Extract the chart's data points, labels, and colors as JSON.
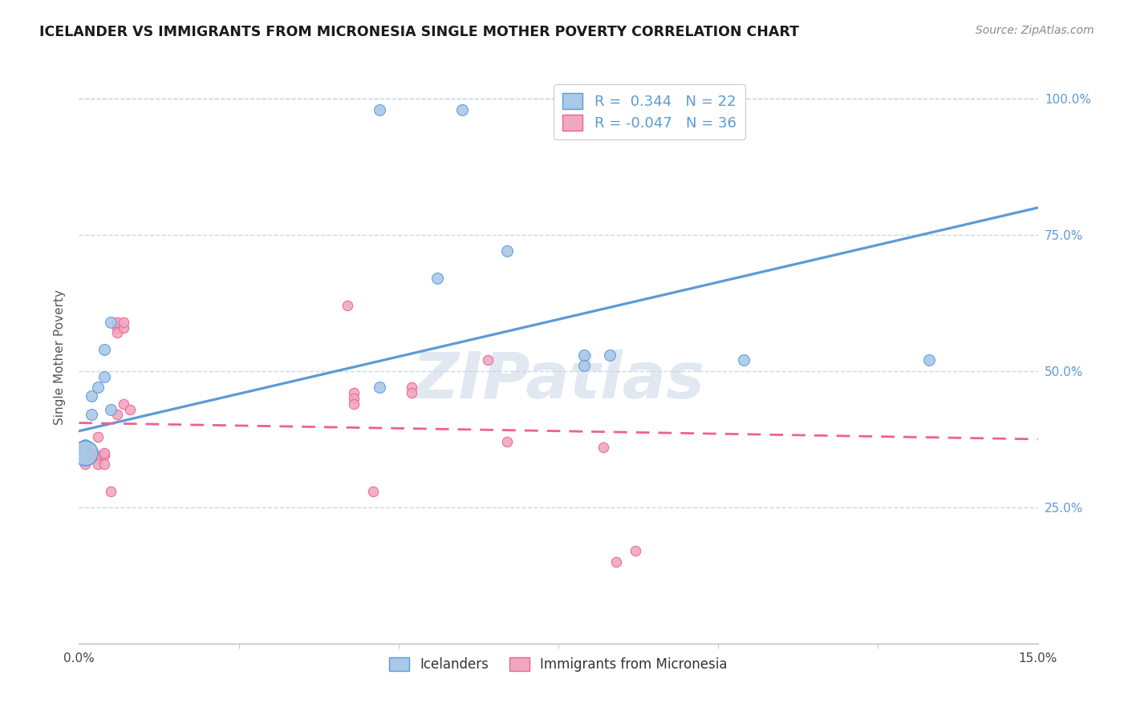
{
  "title": "ICELANDER VS IMMIGRANTS FROM MICRONESIA SINGLE MOTHER POVERTY CORRELATION CHART",
  "source": "Source: ZipAtlas.com",
  "ylabel": "Single Mother Poverty",
  "ytick_labels": [
    "25.0%",
    "50.0%",
    "75.0%",
    "100.0%"
  ],
  "ytick_values": [
    0.25,
    0.5,
    0.75,
    1.0
  ],
  "xlim": [
    0.0,
    0.15
  ],
  "ylim": [
    0.0,
    1.05
  ],
  "legend_entries": [
    {
      "label": "R =  0.344   N = 22"
    },
    {
      "label": "R = -0.047   N = 36"
    }
  ],
  "legend_labels_bottom": [
    "Icelanders",
    "Immigrants from Micronesia"
  ],
  "watermark": "ZIPatlas",
  "blue_scatter": [
    [
      0.001,
      0.355
    ],
    [
      0.001,
      0.365
    ],
    [
      0.001,
      0.34
    ],
    [
      0.001,
      0.35
    ],
    [
      0.002,
      0.42
    ],
    [
      0.002,
      0.455
    ],
    [
      0.003,
      0.47
    ],
    [
      0.004,
      0.49
    ],
    [
      0.004,
      0.54
    ],
    [
      0.005,
      0.59
    ],
    [
      0.005,
      0.43
    ],
    [
      0.047,
      0.98
    ],
    [
      0.047,
      0.47
    ],
    [
      0.056,
      0.67
    ],
    [
      0.06,
      0.98
    ],
    [
      0.067,
      0.72
    ],
    [
      0.079,
      0.53
    ],
    [
      0.079,
      0.51
    ],
    [
      0.083,
      0.53
    ],
    [
      0.104,
      0.52
    ],
    [
      0.133,
      0.52
    ]
  ],
  "blue_large_dot": [
    0.001,
    0.35
  ],
  "blue_large_size": 500,
  "blue_scatter_size": 100,
  "pink_scatter": [
    [
      0.001,
      0.36
    ],
    [
      0.001,
      0.355
    ],
    [
      0.001,
      0.345
    ],
    [
      0.001,
      0.33
    ],
    [
      0.001,
      0.345
    ],
    [
      0.002,
      0.345
    ],
    [
      0.002,
      0.35
    ],
    [
      0.003,
      0.345
    ],
    [
      0.003,
      0.38
    ],
    [
      0.003,
      0.34
    ],
    [
      0.003,
      0.33
    ],
    [
      0.004,
      0.345
    ],
    [
      0.004,
      0.35
    ],
    [
      0.004,
      0.33
    ],
    [
      0.005,
      0.28
    ],
    [
      0.006,
      0.58
    ],
    [
      0.006,
      0.59
    ],
    [
      0.006,
      0.57
    ],
    [
      0.006,
      0.42
    ],
    [
      0.007,
      0.58
    ],
    [
      0.007,
      0.59
    ],
    [
      0.007,
      0.44
    ],
    [
      0.008,
      0.43
    ],
    [
      0.042,
      0.62
    ],
    [
      0.043,
      0.46
    ],
    [
      0.043,
      0.45
    ],
    [
      0.043,
      0.44
    ],
    [
      0.046,
      0.28
    ],
    [
      0.052,
      0.47
    ],
    [
      0.052,
      0.46
    ],
    [
      0.064,
      0.52
    ],
    [
      0.067,
      0.37
    ],
    [
      0.082,
      0.36
    ],
    [
      0.084,
      0.15
    ],
    [
      0.087,
      0.17
    ]
  ],
  "pink_scatter_size": 80,
  "blue_line_x": [
    0.0,
    0.15
  ],
  "blue_line_y": [
    0.39,
    0.8
  ],
  "pink_line_x": [
    0.0,
    0.15
  ],
  "pink_line_y": [
    0.405,
    0.375
  ],
  "blue_color": "#5b9bd5",
  "pink_color": "#f06090",
  "blue_fill": "#aac8e8",
  "pink_fill": "#f0a8c0",
  "background_color": "#ffffff",
  "grid_color": "#c8d8ea"
}
